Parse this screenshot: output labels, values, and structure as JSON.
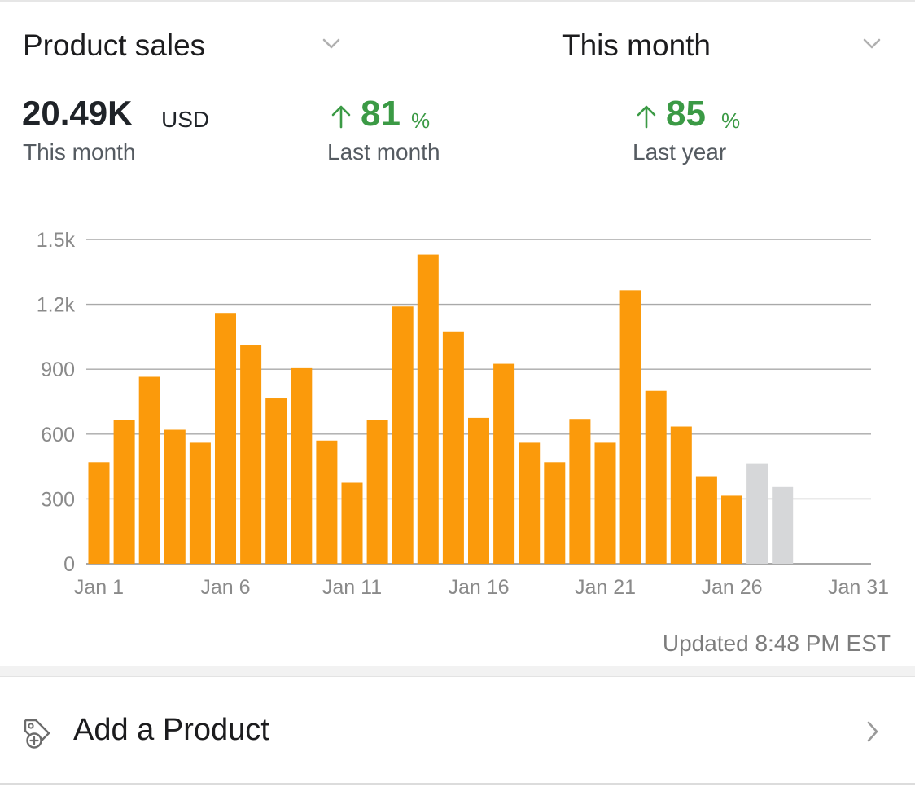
{
  "header": {
    "metric_label": "Product sales",
    "period_label": "This month"
  },
  "kpis": {
    "total": {
      "value": "20.49K",
      "unit": "USD",
      "caption": "This month"
    },
    "vs_last_month": {
      "value": "81",
      "symbol": "%",
      "caption": "Last month",
      "direction": "up"
    },
    "vs_last_year": {
      "value": "85",
      "symbol": "%",
      "caption": "Last year",
      "direction": "up"
    }
  },
  "colors": {
    "bar": "#fb9a0b",
    "bar_projected": "#d6d7d9",
    "positive": "#3b9a45",
    "grid": "#a9a9a9"
  },
  "chart_data": {
    "type": "bar",
    "title": "",
    "xlabel": "",
    "ylabel": "",
    "ylim": [
      0,
      1500
    ],
    "yticks": [
      "0",
      "300",
      "600",
      "900",
      "1.2k",
      "1.5k"
    ],
    "ytick_values": [
      0,
      300,
      600,
      900,
      1200,
      1500
    ],
    "xtick_labels": [
      "Jan 1",
      "Jan 6",
      "Jan 11",
      "Jan 16",
      "Jan 21",
      "Jan 26",
      "Jan 31"
    ],
    "xtick_days": [
      1,
      6,
      11,
      16,
      21,
      26,
      31
    ],
    "grid": true,
    "series": [
      {
        "days": [
          1,
          2,
          3,
          4,
          5,
          6,
          7,
          8,
          9,
          10,
          11,
          12,
          13,
          14,
          15,
          16,
          17,
          18,
          19,
          20,
          21,
          22,
          23,
          24,
          25,
          26
        ],
        "values": [
          470,
          665,
          865,
          620,
          560,
          1160,
          1010,
          765,
          905,
          570,
          375,
          665,
          1190,
          1430,
          1075,
          675,
          925,
          560,
          470,
          670,
          560,
          1265,
          800,
          635,
          405,
          315
        ]
      },
      {
        "days": [
          27,
          28
        ],
        "values": [
          465,
          355
        ],
        "projected": true
      }
    ]
  },
  "footer": {
    "updated": "Updated 8:48 PM EST"
  },
  "actions": {
    "add_product": "Add a Product"
  }
}
